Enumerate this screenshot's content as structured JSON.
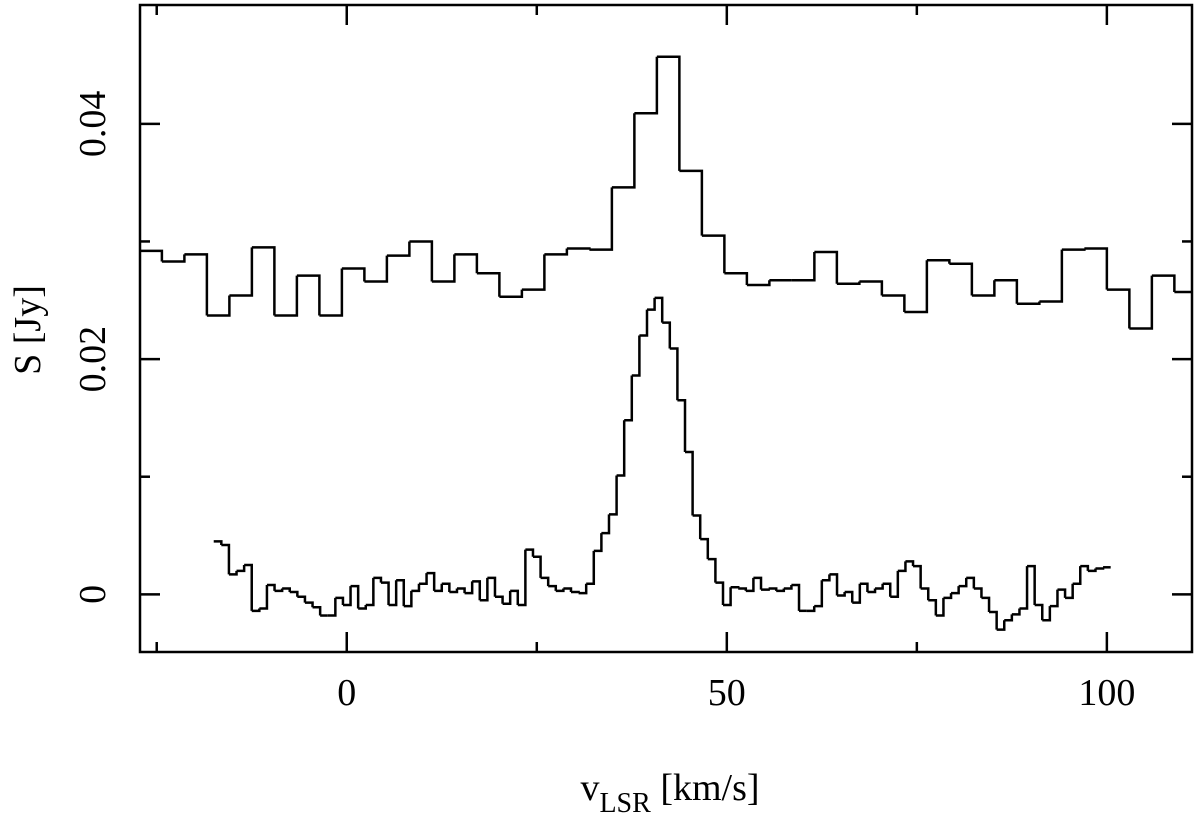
{
  "chart_data": {
    "type": "step",
    "ylabel": "S [Jy]",
    "xlabel": {
      "main": "v",
      "sub": "LSR",
      "rest": " [km/s]"
    },
    "xlim": [
      -27.2,
      111.2
    ],
    "ylim": [
      -0.0049,
      0.0501
    ],
    "xticks": [
      0,
      50,
      100
    ],
    "xminorticks": [
      -25,
      25,
      75
    ],
    "yticks": [
      0,
      0.02,
      0.04
    ],
    "yminorticks": [
      0.01,
      0.03
    ],
    "series": [
      {
        "color": "#000000",
        "x": [
          -25.8,
          -22.84,
          -19.88,
          -16.92,
          -13.96,
          -11.0,
          -8.04,
          -5.08,
          -2.12,
          0.84,
          3.8,
          6.76,
          9.72,
          12.68,
          15.64,
          18.6,
          21.56,
          24.52,
          27.48,
          30.44,
          33.4,
          36.36,
          39.32,
          42.28,
          45.24,
          48.2,
          51.16,
          54.12,
          57.08,
          60.04,
          63.0,
          65.96,
          68.92,
          71.88,
          74.84,
          77.8,
          80.76,
          83.72,
          86.68,
          89.64,
          92.6,
          95.56,
          98.52,
          101.48,
          104.44,
          107.4,
          110.36
        ],
        "values": [
          0.0292,
          0.0283,
          0.0289,
          0.0237,
          0.0254,
          0.0295,
          0.0237,
          0.0271,
          0.0237,
          0.0277,
          0.0266,
          0.0288,
          0.03,
          0.0266,
          0.0289,
          0.0273,
          0.0253,
          0.0259,
          0.0289,
          0.0294,
          0.0293,
          0.0346,
          0.0409,
          0.0457,
          0.036,
          0.0305,
          0.0273,
          0.0263,
          0.0267,
          0.0267,
          0.0291,
          0.0264,
          0.0266,
          0.0254,
          0.024,
          0.0284,
          0.0281,
          0.0254,
          0.0267,
          0.0247,
          0.0249,
          0.0293,
          0.0294,
          0.0259,
          0.0226,
          0.0271,
          0.0257
        ]
      },
      {
        "color": "#000000",
        "x": [
          -17,
          -16,
          -15,
          -14,
          -13,
          -12,
          -11,
          -10,
          -9,
          -8,
          -7,
          -6,
          -5,
          -4,
          -3,
          -2,
          -1,
          0,
          1,
          2,
          3,
          4,
          5,
          6,
          7,
          8,
          9,
          10,
          11,
          12,
          13,
          14,
          15,
          16,
          17,
          18,
          19,
          20,
          21,
          22,
          23,
          24,
          25,
          26,
          27,
          28,
          29,
          30,
          31,
          32,
          33,
          34,
          35,
          36,
          37,
          38,
          39,
          40,
          41,
          42,
          43,
          44,
          45,
          46,
          47,
          48,
          49,
          50,
          51,
          52,
          53,
          54,
          55,
          56,
          57,
          58,
          59,
          60,
          61,
          62,
          63,
          64,
          65,
          66,
          67,
          68,
          69,
          70,
          71,
          72,
          73,
          74,
          75,
          76,
          77,
          78,
          79,
          80,
          81,
          82,
          83,
          84,
          85,
          86,
          87,
          88,
          89,
          90,
          91,
          92,
          93,
          94,
          95,
          96,
          97,
          98,
          99,
          100
        ],
        "values": [
          0.0045,
          0.0042,
          0.0017,
          0.002,
          0.0025,
          -0.0014,
          -0.0012,
          0.0008,
          0.0003,
          0.0005,
          0.0002,
          -0.0002,
          -0.0007,
          -0.0011,
          -0.0018,
          -0.0018,
          -0.0003,
          -0.0009,
          0.0007,
          -0.0012,
          -0.0009,
          0.0014,
          0.001,
          -0.0009,
          0.0012,
          -0.001,
          0.0003,
          0.0009,
          0.0018,
          0.0003,
          0.0009,
          0.0002,
          0.0005,
          0.0001,
          0.0011,
          -0.0005,
          0.0014,
          -0.0002,
          -0.0008,
          0.0003,
          -0.0009,
          0.0038,
          0.0032,
          0.0014,
          0.0007,
          0.0003,
          0.0005,
          0.0002,
          0.0001,
          0.0009,
          0.0037,
          0.0052,
          0.0068,
          0.0101,
          0.0148,
          0.0186,
          0.022,
          0.0242,
          0.0252,
          0.0231,
          0.0209,
          0.0165,
          0.0121,
          0.0067,
          0.0047,
          0.003,
          0.001,
          -0.0009,
          0.0006,
          0.0005,
          0.0003,
          0.0014,
          0.0004,
          0.0005,
          0.0003,
          0.0005,
          0.0008,
          -0.0014,
          -0.0014,
          -0.001,
          0.0012,
          0.0017,
          -0.0001,
          0.0002,
          -0.0007,
          0.0009,
          0.0002,
          0.0005,
          0.0009,
          -0.0002,
          0.002,
          0.0028,
          0.0024,
          0.0005,
          -0.0005,
          -0.0018,
          -0.0003,
          0.0001,
          0.0007,
          0.0014,
          0.0005,
          -0.0003,
          -0.0015,
          -0.003,
          -0.0022,
          -0.0017,
          -0.0012,
          0.0024,
          -0.0009,
          -0.0022,
          -0.001,
          0.0004,
          -0.0003,
          0.0009,
          0.0024,
          0.002,
          0.0022,
          0.0023
        ]
      }
    ]
  }
}
